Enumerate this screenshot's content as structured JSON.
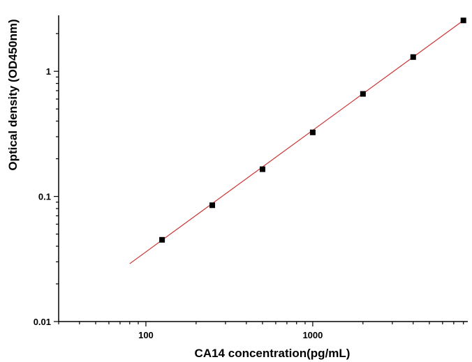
{
  "chart_data": {
    "type": "scatter",
    "title": "",
    "xlabel": "CA14 concentration(pg/mL)",
    "ylabel": "Optical density (OD450nm)",
    "x_scale": "log",
    "y_scale": "log",
    "xlim": [
      30,
      8500
    ],
    "ylim": [
      0.01,
      2.8
    ],
    "x_tick_labels": [
      "100",
      "1000"
    ],
    "y_tick_labels": [
      "0.01",
      "0.1",
      "1"
    ],
    "grid": false,
    "legend": "none",
    "series": [
      {
        "kind": "points",
        "marker": "square",
        "color": "#000000",
        "x": [
          125,
          250,
          500,
          1000,
          2000,
          4000,
          8000
        ],
        "y": [
          0.045,
          0.085,
          0.165,
          0.325,
          0.66,
          1.3,
          2.55
        ]
      },
      {
        "kind": "fit-line",
        "color": "#cc3333",
        "x": [
          80,
          8000
        ],
        "y": [
          0.029,
          2.55
        ]
      }
    ]
  }
}
